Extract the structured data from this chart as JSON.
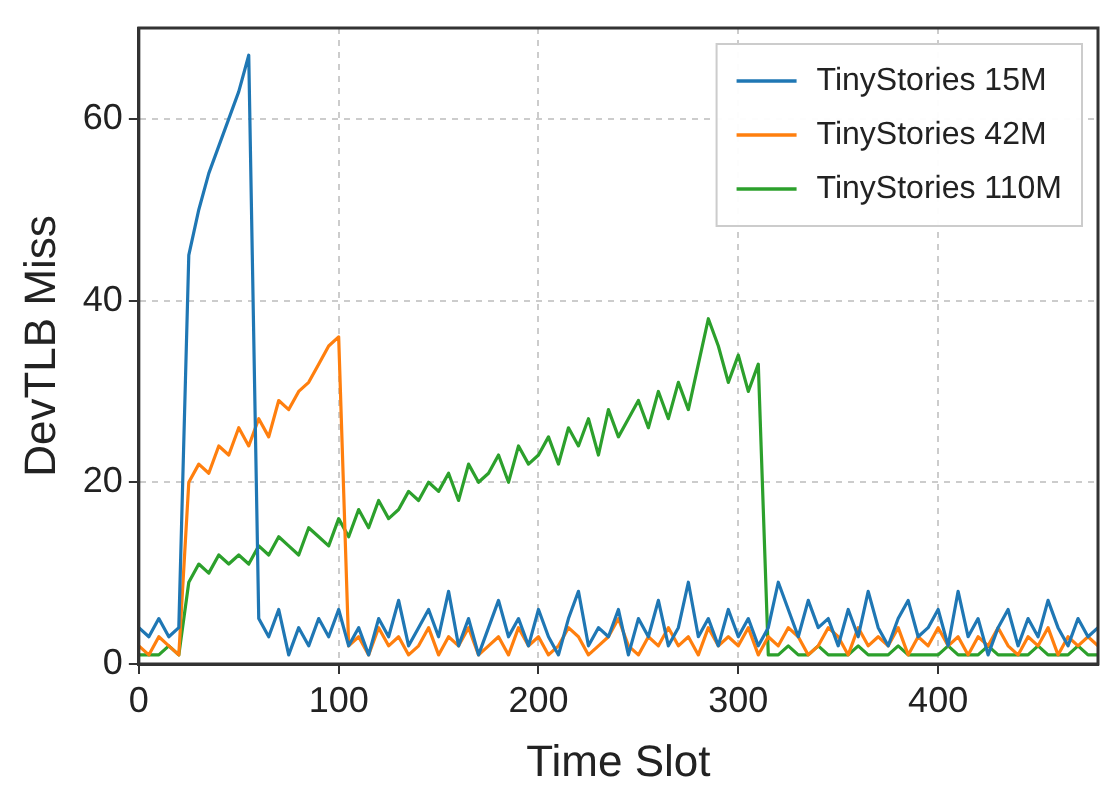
{
  "chart_data": {
    "type": "line",
    "xlabel": "Time Slot",
    "ylabel": "DevTLB Miss",
    "x": [
      0,
      5,
      10,
      15,
      20,
      25,
      30,
      35,
      40,
      45,
      50,
      55,
      60,
      65,
      70,
      75,
      80,
      85,
      90,
      95,
      100,
      105,
      110,
      115,
      120,
      125,
      130,
      135,
      140,
      145,
      150,
      155,
      160,
      165,
      170,
      175,
      180,
      185,
      190,
      195,
      200,
      205,
      210,
      215,
      220,
      225,
      230,
      235,
      240,
      245,
      250,
      255,
      260,
      265,
      270,
      275,
      280,
      285,
      290,
      295,
      300,
      305,
      310,
      315,
      320,
      325,
      330,
      335,
      340,
      345,
      350,
      355,
      360,
      365,
      370,
      375,
      380,
      385,
      390,
      395,
      400,
      405,
      410,
      415,
      420,
      425,
      430,
      435,
      440,
      445,
      450,
      455,
      460,
      465,
      470,
      475,
      480
    ],
    "series": [
      {
        "name": "TinyStories 15M",
        "color": "#1f77b4",
        "values": [
          4,
          3,
          5,
          3,
          4,
          45,
          50,
          54,
          57,
          60,
          63,
          67,
          5,
          3,
          6,
          1,
          4,
          2,
          5,
          3,
          6,
          2,
          4,
          1,
          5,
          3,
          7,
          2,
          4,
          6,
          3,
          8,
          2,
          5,
          1,
          4,
          7,
          3,
          5,
          2,
          6,
          3,
          1,
          5,
          8,
          2,
          4,
          3,
          6,
          1,
          5,
          3,
          7,
          2,
          4,
          9,
          3,
          5,
          2,
          6,
          3,
          5,
          2,
          4,
          9,
          6,
          3,
          7,
          4,
          5,
          2,
          6,
          3,
          8,
          4,
          2,
          5,
          7,
          3,
          4,
          6,
          2,
          8,
          3,
          5,
          1,
          4,
          6,
          2,
          5,
          3,
          7,
          4,
          2,
          5,
          3,
          4
        ]
      },
      {
        "name": "TinyStories 42M",
        "color": "#ff7f0e",
        "values": [
          2,
          1,
          3,
          2,
          1,
          20,
          22,
          21,
          24,
          23,
          26,
          24,
          27,
          25,
          29,
          28,
          30,
          31,
          33,
          35,
          36,
          2,
          3,
          1,
          4,
          2,
          3,
          1,
          2,
          4,
          1,
          3,
          2,
          4,
          1,
          2,
          3,
          1,
          4,
          2,
          3,
          1,
          2,
          4,
          3,
          1,
          2,
          3,
          5,
          2,
          1,
          3,
          2,
          4,
          2,
          3,
          1,
          4,
          2,
          3,
          2,
          4,
          1,
          3,
          2,
          4,
          3,
          1,
          2,
          4,
          3,
          1,
          4,
          2,
          3,
          2,
          4,
          1,
          3,
          2,
          4,
          2,
          3,
          1,
          3,
          2,
          4,
          2,
          1,
          3,
          2,
          4,
          1,
          3,
          2,
          3,
          2
        ]
      },
      {
        "name": "TinyStories 110M",
        "color": "#2ca02c",
        "values": [
          1,
          1,
          1,
          2,
          1,
          9,
          11,
          10,
          12,
          11,
          12,
          11,
          13,
          12,
          14,
          13,
          12,
          15,
          14,
          13,
          16,
          14,
          17,
          15,
          18,
          16,
          17,
          19,
          18,
          20,
          19,
          21,
          18,
          22,
          20,
          21,
          23,
          20,
          24,
          22,
          23,
          25,
          22,
          26,
          24,
          27,
          23,
          28,
          25,
          27,
          29,
          26,
          30,
          27,
          31,
          28,
          33,
          38,
          35,
          31,
          34,
          30,
          33,
          1,
          1,
          2,
          1,
          1,
          2,
          1,
          1,
          1,
          2,
          1,
          1,
          1,
          2,
          1,
          1,
          1,
          1,
          2,
          1,
          1,
          1,
          2,
          1,
          1,
          1,
          1,
          2,
          1,
          1,
          1,
          2,
          1,
          1
        ]
      }
    ],
    "xlim": [
      0,
      480
    ],
    "xticks": [
      0,
      100,
      200,
      300,
      400
    ],
    "ylim": [
      0,
      70
    ],
    "yticks": [
      0,
      20,
      40,
      60
    ],
    "grid": true,
    "legend": "top right",
    "marker": "none",
    "line_style": "solid"
  }
}
